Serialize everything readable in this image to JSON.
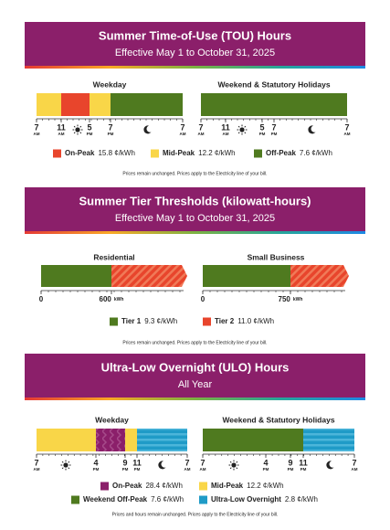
{
  "tou": {
    "title": "Summer Time-of-Use (TOU) Hours",
    "subtitle": "Effective May 1 to October 31, 2025",
    "weekday": {
      "label": "Weekday",
      "ticks": [
        {
          "hour": "7",
          "period": "AM"
        },
        {
          "hour": "11",
          "period": "AM"
        },
        {
          "hour": "5",
          "period": "PM"
        },
        {
          "hour": "7",
          "period": "PM"
        },
        {
          "hour": "7",
          "period": "AM"
        }
      ]
    },
    "weekend": {
      "label": "Weekend & Statutory Holidays",
      "ticks": [
        {
          "hour": "7",
          "period": "AM"
        },
        {
          "hour": "11",
          "period": "AM"
        },
        {
          "hour": "5",
          "period": "PM"
        },
        {
          "hour": "7",
          "period": "PM"
        },
        {
          "hour": "7",
          "period": "AM"
        }
      ]
    },
    "legend": [
      {
        "label": "On-Peak",
        "price": "15.8 ¢/kWh"
      },
      {
        "label": "Mid-Peak",
        "price": "12.2 ¢/kWh"
      },
      {
        "label": "Off-Peak",
        "price": "7.6 ¢/kWh"
      }
    ],
    "note": "Prices remain unchanged. Prices apply to the Electricity line of your bill."
  },
  "tiers": {
    "title": "Summer Tier Thresholds (kilowatt-hours)",
    "subtitle": "Effective May 1 to October 31, 2025",
    "residential": {
      "label": "Residential",
      "ticks": [
        {
          "value": "0"
        },
        {
          "value": "600",
          "unit": "kWh"
        }
      ]
    },
    "small_business": {
      "label": "Small Business",
      "ticks": [
        {
          "value": "0"
        },
        {
          "value": "750",
          "unit": "kWh"
        }
      ]
    },
    "legend": [
      {
        "label": "Tier 1",
        "price": "9.3 ¢/kWh"
      },
      {
        "label": "Tier 2",
        "price": "11.0 ¢/kWh"
      }
    ],
    "note": "Prices remain unchanged. Prices apply to the Electricity line of your bill."
  },
  "ulo": {
    "title": "Ultra-Low Overnight (ULO) Hours",
    "subtitle": "All Year",
    "weekday": {
      "label": "Weekday",
      "ticks": [
        {
          "hour": "7",
          "period": "AM"
        },
        {
          "hour": "4",
          "period": "PM"
        },
        {
          "hour": "9",
          "period": "PM"
        },
        {
          "hour": "11",
          "period": "PM"
        },
        {
          "hour": "7",
          "period": "AM"
        }
      ]
    },
    "weekend": {
      "label": "Weekend & Statutory Holidays",
      "ticks": [
        {
          "hour": "7",
          "period": "AM"
        },
        {
          "hour": "4",
          "period": "PM"
        },
        {
          "hour": "9",
          "period": "PM"
        },
        {
          "hour": "11",
          "period": "PM"
        },
        {
          "hour": "7",
          "period": "AM"
        }
      ]
    },
    "legend": [
      {
        "label": "On-Peak",
        "price": "28.4 ¢/kWh"
      },
      {
        "label": "Mid-Peak",
        "price": "12.2 ¢/kWh"
      },
      {
        "label": "Weekend Off-Peak",
        "price": "7.6 ¢/kWh"
      },
      {
        "label": "Ultra-Low Overnight",
        "price": "2.8 ¢/kWh"
      }
    ],
    "note": "Prices and hours remain unchanged. Prices apply to the Electricity line of your bill."
  }
}
